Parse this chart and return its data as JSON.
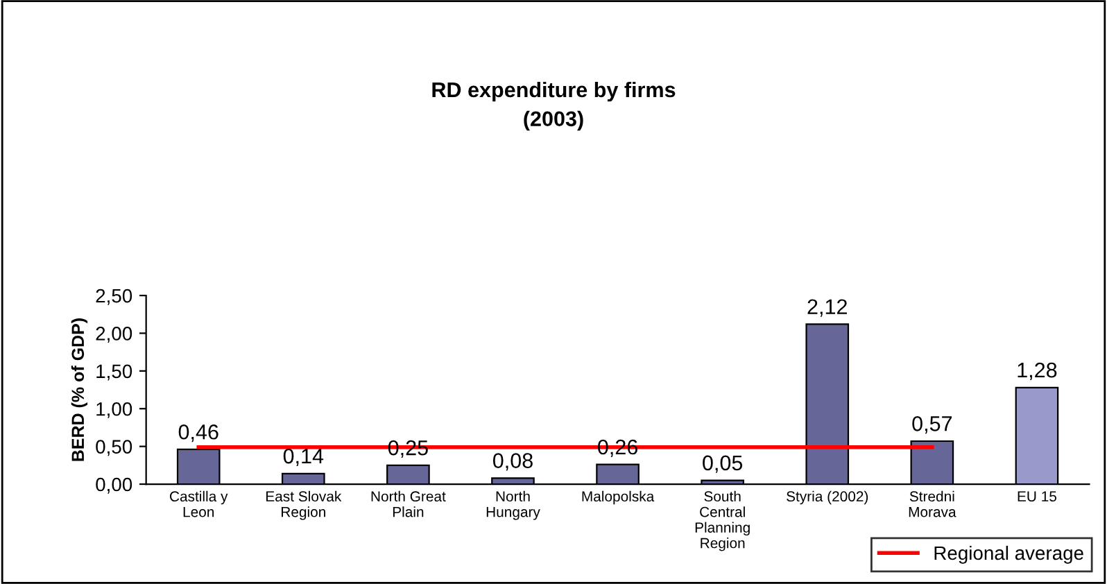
{
  "chart_data": {
    "type": "bar",
    "title": "RD expenditure by firms\n(2003)",
    "ylabel": "BERD (% of GDP)",
    "categories": [
      "Castilla y\nLeon",
      "East Slovak\nRegion",
      "North Great\nPlain",
      "North\nHungary",
      "Malopolska",
      "South\nCentral\nPlanning\nRegion",
      "Styria (2002)",
      "Stredni\nMorava",
      "EU 15"
    ],
    "series": [
      {
        "values": [
          0.46,
          0.14,
          0.25,
          0.08,
          0.26,
          0.05,
          2.12,
          0.57,
          1.28
        ],
        "colors": [
          "#666699",
          "#666699",
          "#666699",
          "#666699",
          "#666699",
          "#666699",
          "#666699",
          "#666699",
          "#9999cc"
        ],
        "value_labels": [
          "0,46",
          "0,14",
          "0,25",
          "0,08",
          "0,26",
          "0,05",
          "2,12",
          "0,57",
          "1,28"
        ]
      },
      {
        "type": "line",
        "name": "Regional average",
        "color": "#ff0000",
        "values": [
          0.49,
          0.49,
          0.49,
          0.49,
          0.49,
          0.49,
          0.49,
          0.49,
          null
        ]
      }
    ],
    "ylim": [
      0,
      2.5
    ],
    "yticks": [
      {
        "value": 0,
        "label": "0,00"
      },
      {
        "value": 0.5,
        "label": "0,50"
      },
      {
        "value": 1.0,
        "label": "1,00"
      },
      {
        "value": 1.5,
        "label": "1,50"
      },
      {
        "value": 2.0,
        "label": "2,00"
      },
      {
        "value": 2.5,
        "label": "2,50"
      }
    ],
    "grid": false,
    "legend": "bottom right",
    "marker": "none"
  }
}
